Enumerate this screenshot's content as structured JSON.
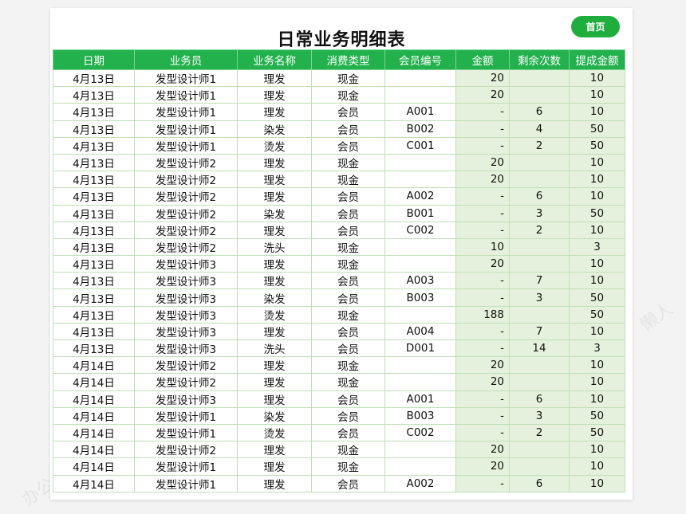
{
  "title": "日常业务明细表",
  "home_button": "首页",
  "colors": {
    "header_bg": "#22b14c",
    "button_bg": "#1fae3e",
    "summary_cell_bg": "#e6f1dd"
  },
  "columns": [
    "日期",
    "业务员",
    "业务名称",
    "消费类型",
    "会员编号",
    "金额",
    "剩余次数",
    "提成金额"
  ],
  "rows": [
    [
      "4月13日",
      "发型设计师1",
      "理发",
      "现金",
      "",
      "20",
      "",
      "10"
    ],
    [
      "4月13日",
      "发型设计师1",
      "理发",
      "现金",
      "",
      "20",
      "",
      "10"
    ],
    [
      "4月13日",
      "发型设计师1",
      "理发",
      "会员",
      "A001",
      "-",
      "6",
      "10"
    ],
    [
      "4月13日",
      "发型设计师1",
      "染发",
      "会员",
      "B002",
      "-",
      "4",
      "50"
    ],
    [
      "4月13日",
      "发型设计师1",
      "烫发",
      "会员",
      "C001",
      "-",
      "2",
      "50"
    ],
    [
      "4月13日",
      "发型设计师2",
      "理发",
      "现金",
      "",
      "20",
      "",
      "10"
    ],
    [
      "4月13日",
      "发型设计师2",
      "理发",
      "现金",
      "",
      "20",
      "",
      "10"
    ],
    [
      "4月13日",
      "发型设计师2",
      "理发",
      "会员",
      "A002",
      "-",
      "6",
      "10"
    ],
    [
      "4月13日",
      "发型设计师2",
      "染发",
      "会员",
      "B001",
      "-",
      "3",
      "50"
    ],
    [
      "4月13日",
      "发型设计师2",
      "理发",
      "会员",
      "C002",
      "-",
      "2",
      "10"
    ],
    [
      "4月13日",
      "发型设计师2",
      "洗头",
      "现金",
      "",
      "10",
      "",
      "3"
    ],
    [
      "4月13日",
      "发型设计师3",
      "理发",
      "现金",
      "",
      "20",
      "",
      "10"
    ],
    [
      "4月13日",
      "发型设计师3",
      "理发",
      "会员",
      "A003",
      "-",
      "7",
      "10"
    ],
    [
      "4月13日",
      "发型设计师3",
      "染发",
      "会员",
      "B003",
      "-",
      "3",
      "50"
    ],
    [
      "4月13日",
      "发型设计师3",
      "烫发",
      "现金",
      "",
      "188",
      "",
      "50"
    ],
    [
      "4月13日",
      "发型设计师3",
      "理发",
      "会员",
      "A004",
      "-",
      "7",
      "10"
    ],
    [
      "4月13日",
      "发型设计师3",
      "洗头",
      "会员",
      "D001",
      "-",
      "14",
      "3"
    ],
    [
      "4月14日",
      "发型设计师2",
      "理发",
      "现金",
      "",
      "20",
      "",
      "10"
    ],
    [
      "4月14日",
      "发型设计师2",
      "理发",
      "现金",
      "",
      "20",
      "",
      "10"
    ],
    [
      "4月14日",
      "发型设计师3",
      "理发",
      "会员",
      "A001",
      "-",
      "6",
      "10"
    ],
    [
      "4月14日",
      "发型设计师1",
      "染发",
      "会员",
      "B003",
      "-",
      "3",
      "50"
    ],
    [
      "4月14日",
      "发型设计师1",
      "烫发",
      "会员",
      "C002",
      "-",
      "2",
      "50"
    ],
    [
      "4月14日",
      "发型设计师2",
      "理发",
      "现金",
      "",
      "20",
      "",
      "10"
    ],
    [
      "4月14日",
      "发型设计师1",
      "理发",
      "现金",
      "",
      "20",
      "",
      "10"
    ],
    [
      "4月14日",
      "发型设计师1",
      "理发",
      "会员",
      "A002",
      "-",
      "6",
      "10"
    ]
  ]
}
